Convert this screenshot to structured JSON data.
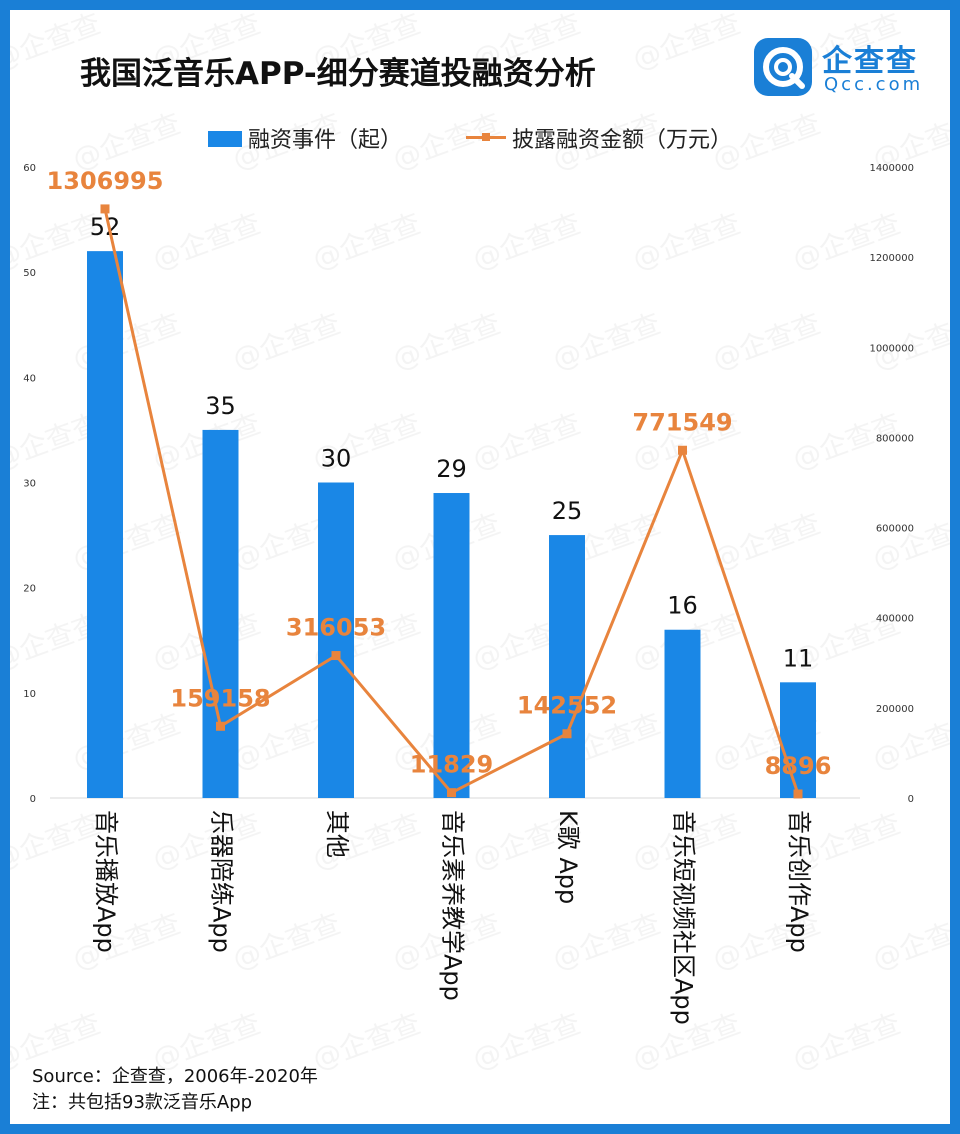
{
  "title": "我国泛音乐APP-细分赛道投融资分析",
  "logo": {
    "cn": "企查查",
    "en": "Qcc.com",
    "watermark": "企查查"
  },
  "source": "Source：企查查，2006年-2020年",
  "note": "注：共包括93款泛音乐App",
  "colors": {
    "frame": "#1a7fd6",
    "bar": "#1a87e6",
    "line": "#e8843d",
    "brand": "#1a7fd6"
  },
  "chart_data": {
    "type": "bar",
    "categories": [
      "音乐播放App",
      "乐器陪练App",
      "其他",
      "音乐素养教学App",
      "K歌 App",
      "音乐短视频社区App",
      "音乐创作App"
    ],
    "series": [
      {
        "name": "融资事件（起）",
        "type": "bar",
        "axis": "left",
        "values": [
          52,
          35,
          30,
          29,
          25,
          16,
          11
        ]
      },
      {
        "name": "披露融资金额（万元）",
        "type": "line",
        "axis": "right",
        "values": [
          1306995,
          159158,
          316053,
          11829,
          142552,
          771549,
          8896
        ]
      }
    ],
    "y_left": {
      "min": 0,
      "max": 60,
      "ticks": [
        "0",
        "10",
        "20",
        "30",
        "40",
        "50",
        "60"
      ]
    },
    "y_right": {
      "min": 0,
      "max": 1400000,
      "ticks": [
        "0",
        "200000",
        "400000",
        "600000",
        "800000",
        "1000000",
        "1200000",
        "1400000"
      ]
    },
    "legend": "top-center",
    "grid": false
  }
}
